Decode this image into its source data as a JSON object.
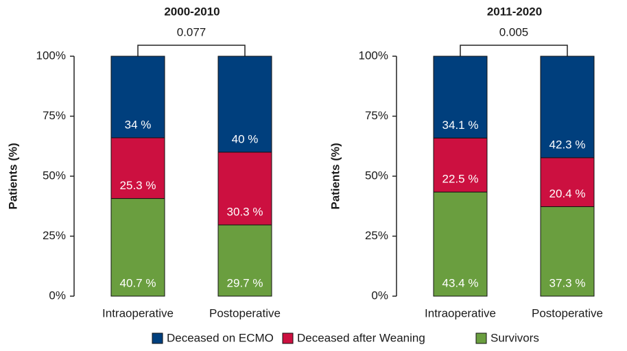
{
  "chart_data": [
    {
      "type": "stacked_bar",
      "title": "2000-2010",
      "annotation": "0.077",
      "y_label": "Patients (%)",
      "categories": [
        "Intraoperative",
        "Postoperative"
      ],
      "ylim": [
        0,
        100
      ],
      "yticks": [
        {
          "value": 0,
          "label": "0%"
        },
        {
          "value": 25,
          "label": "25%"
        },
        {
          "value": 50,
          "label": "50%"
        },
        {
          "value": 75,
          "label": "75%"
        },
        {
          "value": 100,
          "label": "100%"
        }
      ],
      "series": [
        {
          "values": [
            34,
            40
          ],
          "value_labels": [
            "34 %",
            "40 %"
          ]
        },
        {
          "values": [
            25.3,
            30.3
          ],
          "value_labels": [
            "25.3 %",
            "30.3 %"
          ]
        },
        {
          "values": [
            40.7,
            29.7
          ],
          "value_labels": [
            "40.7 %",
            "29.7 %"
          ]
        }
      ]
    },
    {
      "type": "stacked_bar",
      "title": "2011-2020",
      "annotation": "0.005",
      "y_label": "Patients (%)",
      "categories": [
        "Intraoperative",
        "Postoperative"
      ],
      "ylim": [
        0,
        100
      ],
      "yticks": [
        {
          "value": 0,
          "label": "0%"
        },
        {
          "value": 25,
          "label": "25%"
        },
        {
          "value": 50,
          "label": "50%"
        },
        {
          "value": 75,
          "label": "75%"
        },
        {
          "value": 100,
          "label": "100%"
        }
      ],
      "series": [
        {
          "values": [
            34.1,
            42.3
          ],
          "value_labels": [
            "34.1 %",
            "42.3 %"
          ]
        },
        {
          "values": [
            22.5,
            20.4
          ],
          "value_labels": [
            "22.5 %",
            "20.4 %"
          ]
        },
        {
          "values": [
            43.4,
            37.3
          ],
          "value_labels": [
            "43.4 %",
            "37.3 %"
          ]
        }
      ]
    }
  ],
  "legend": {
    "items": [
      {
        "name": "Deceased on ECMO",
        "color": "#003f7d"
      },
      {
        "name": "Deceased after Weaning",
        "color": "#cc1040"
      },
      {
        "name": "Survivors",
        "color": "#6a9e3f"
      }
    ]
  }
}
